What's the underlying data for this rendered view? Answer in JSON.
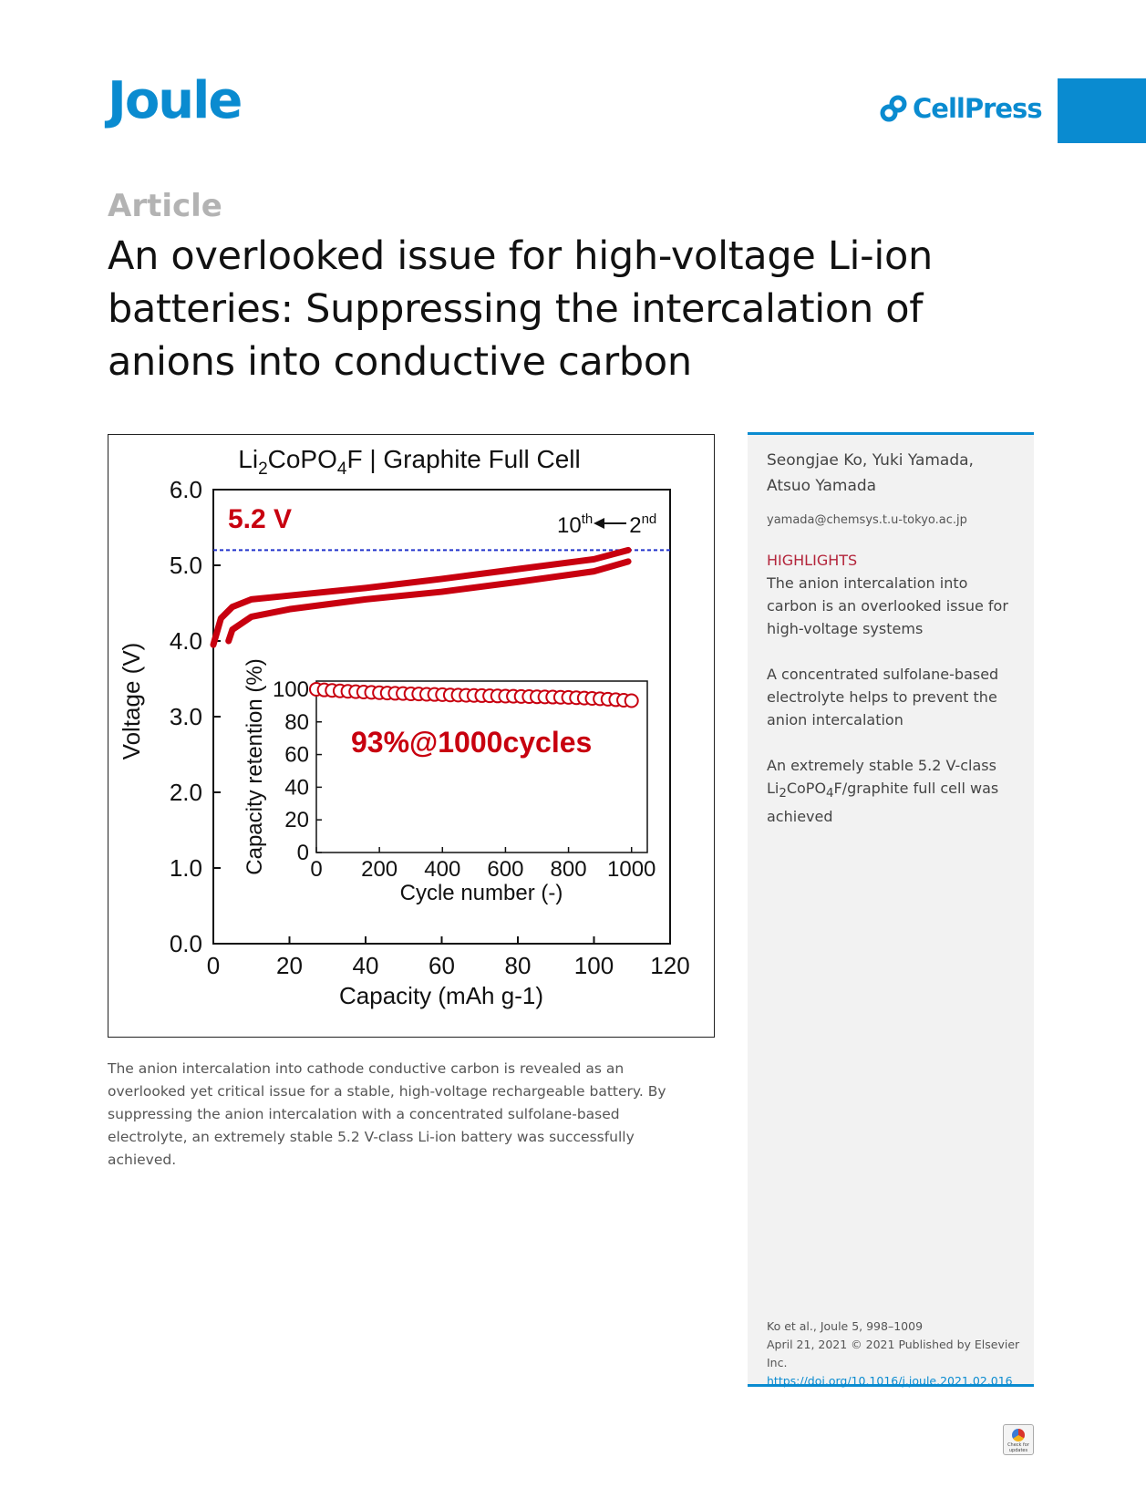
{
  "header": {
    "journal": "Joule",
    "publisher": "CellPress",
    "article_type": "Article"
  },
  "title": "An overlooked issue for high-voltage Li-ion batteries: Suppressing the intercalation of anions into conductive carbon",
  "figure": {
    "title_main": "Li",
    "title_sub1": "2",
    "title_mid": "CoPO",
    "title_sub2": "4",
    "title_rest": "F | Graphite Full Cell",
    "voltage_label": "5.2 V",
    "cycle_10_base": "10",
    "cycle_10_sup": "th",
    "cycle_2_base": "2",
    "cycle_2_sup": "nd",
    "inset_label": "93%@1000cycles"
  },
  "chart_data": [
    {
      "type": "line",
      "title": "Li2CoPO4F | Graphite Full Cell",
      "xlabel": "Capacity (mAh g-1)",
      "ylabel": "Voltage (V)",
      "xlim": [
        0,
        120
      ],
      "ylim": [
        0.0,
        6.0
      ],
      "x_ticks": [
        "0",
        "20",
        "40",
        "60",
        "80",
        "100",
        "120"
      ],
      "y_ticks": [
        "0.0",
        "1.0",
        "2.0",
        "3.0",
        "4.0",
        "5.0",
        "6.0"
      ],
      "reference_line": {
        "y": 5.2,
        "style": "dashed",
        "color": "#2233cc"
      },
      "series": [
        {
          "name": "charge",
          "color": "#c8000f",
          "x": [
            0,
            2,
            5,
            10,
            20,
            40,
            60,
            80,
            100,
            109
          ],
          "y": [
            3.95,
            4.3,
            4.45,
            4.55,
            4.6,
            4.7,
            4.82,
            4.95,
            5.08,
            5.2
          ]
        },
        {
          "name": "discharge",
          "color": "#c8000f",
          "x": [
            109,
            100,
            80,
            60,
            40,
            20,
            10,
            5,
            4
          ],
          "y": [
            5.05,
            4.92,
            4.78,
            4.65,
            4.55,
            4.42,
            4.32,
            4.15,
            4.0
          ]
        }
      ]
    },
    {
      "type": "scatter",
      "xlabel": "Cycle number (-)",
      "ylabel": "Capacity retention (%)",
      "xlim": [
        0,
        1050
      ],
      "ylim": [
        0,
        105
      ],
      "x_ticks": [
        "0",
        "200",
        "400",
        "600",
        "800",
        "1000"
      ],
      "y_ticks": [
        "0",
        "20",
        "40",
        "60",
        "80",
        "100"
      ],
      "annotation": "93%@1000cycles",
      "series": [
        {
          "name": "retention",
          "color": "#c8000f",
          "x": [
            0,
            25,
            50,
            75,
            100,
            125,
            150,
            175,
            200,
            225,
            250,
            275,
            300,
            325,
            350,
            375,
            400,
            425,
            450,
            475,
            500,
            525,
            550,
            575,
            600,
            625,
            650,
            675,
            700,
            725,
            750,
            775,
            800,
            825,
            850,
            875,
            900,
            925,
            950,
            975,
            1000
          ],
          "y": [
            100,
            99.6,
            99.3,
            99,
            98.7,
            98.5,
            98.3,
            98.1,
            97.9,
            97.7,
            97.5,
            97.4,
            97.2,
            97.1,
            96.9,
            96.8,
            96.7,
            96.5,
            96.4,
            96.3,
            96.2,
            96.1,
            96,
            95.9,
            95.8,
            95.7,
            95.6,
            95.5,
            95.4,
            95.3,
            95.2,
            95.1,
            95,
            94.8,
            94.6,
            94.4,
            94.2,
            93.9,
            93.6,
            93.3,
            93
          ]
        }
      ]
    }
  ],
  "caption": "The anion intercalation into cathode conductive carbon is revealed as an overlooked yet critical issue for a stable, high-voltage rechargeable battery. By suppressing the anion intercalation with a concentrated sulfolane-based electrolyte, an extremely stable 5.2 V-class Li-ion battery was successfully achieved.",
  "sidebar": {
    "authors": "Seongjae Ko, Yuki Yamada, Atsuo Yamada",
    "email": "yamada@chemsys.t.u-tokyo.ac.jp",
    "highlights_heading": "HIGHLIGHTS",
    "highlights": [
      "The anion intercalation into carbon is an overlooked issue for high-voltage systems",
      "A concentrated sulfolane-based electrolyte helps to prevent the anion intercalation"
    ],
    "highlight3_a": "An extremely stable 5.2 V-class Li",
    "highlight3_sub1": "2",
    "highlight3_b": "CoPO",
    "highlight3_sub2": "4",
    "highlight3_c": "F/graphite full cell was achieved",
    "citation_line1": "Ko et al., Joule 5, 998–1009",
    "citation_line2": "April 21, 2021 © 2021 Published by Elsevier Inc.",
    "doi": "https://doi.org/10.1016/j.joule.2021.02.016"
  },
  "badge": {
    "line1": "Check for",
    "line2": "updates"
  }
}
